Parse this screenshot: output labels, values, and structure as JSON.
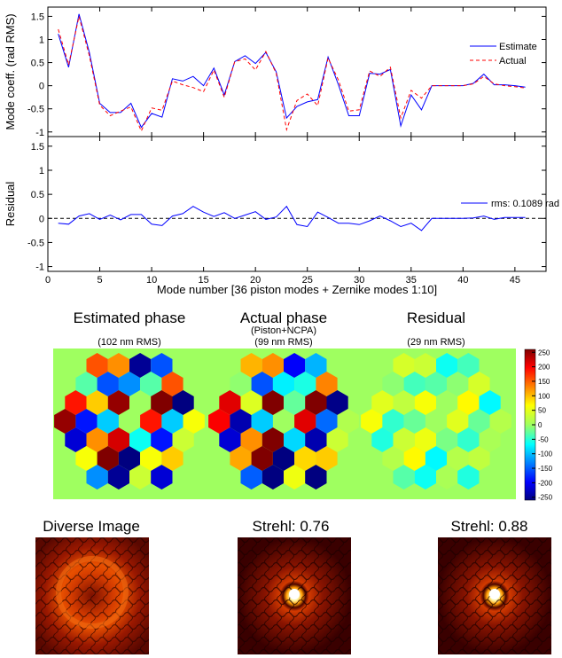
{
  "chart_data": [
    {
      "type": "line",
      "name": "mode-coefficients",
      "ylabel": "Mode coeff. (rad RMS)",
      "xlim": [
        0,
        48
      ],
      "ylim": [
        -1.1,
        1.7
      ],
      "xticks": [
        "0",
        "5",
        "10",
        "15",
        "20",
        "25",
        "30",
        "35",
        "40",
        "45"
      ],
      "yticks": [
        "-1",
        "-0.5",
        "0",
        "0.5",
        "1",
        "1.5"
      ],
      "legend": [
        "Estimate",
        "Actual"
      ],
      "x": [
        1,
        2,
        3,
        4,
        5,
        6,
        7,
        8,
        9,
        10,
        11,
        12,
        13,
        14,
        15,
        16,
        17,
        18,
        19,
        20,
        21,
        22,
        23,
        24,
        25,
        26,
        27,
        28,
        29,
        30,
        31,
        32,
        33,
        34,
        35,
        36,
        37,
        38,
        39,
        40,
        41,
        42,
        43,
        44,
        45,
        46
      ],
      "series": [
        {
          "name": "Estimate",
          "color": "#0000ff",
          "values": [
            1.12,
            0.4,
            1.55,
            0.72,
            -0.38,
            -0.58,
            -0.58,
            -0.38,
            -0.9,
            -0.6,
            -0.68,
            0.15,
            0.1,
            0.2,
            0.0,
            0.38,
            -0.2,
            0.52,
            0.65,
            0.48,
            0.72,
            0.3,
            -0.7,
            -0.45,
            -0.35,
            -0.3,
            0.62,
            0.02,
            -0.65,
            -0.65,
            0.27,
            0.25,
            0.35,
            -0.87,
            -0.2,
            -0.52,
            0.0,
            0.0,
            0.0,
            0.0,
            0.05,
            0.25,
            0.02,
            0.02,
            -0.0,
            -0.03
          ]
        },
        {
          "name": "Actual",
          "color": "#ff0000",
          "dashed": true,
          "values": [
            1.22,
            0.45,
            1.5,
            0.65,
            -0.42,
            -0.65,
            -0.55,
            -0.46,
            -0.98,
            -0.48,
            -0.53,
            0.1,
            0.02,
            -0.04,
            -0.13,
            0.34,
            -0.25,
            0.52,
            0.58,
            0.34,
            0.74,
            0.27,
            -0.95,
            -0.32,
            -0.18,
            -0.43,
            0.6,
            0.12,
            -0.55,
            -0.52,
            0.32,
            0.2,
            0.4,
            -0.7,
            -0.1,
            -0.27,
            0.0,
            0.0,
            0.0,
            0.0,
            0.04,
            0.2,
            0.04,
            0.0,
            -0.02,
            -0.05
          ]
        }
      ]
    },
    {
      "type": "line",
      "name": "residual",
      "ylabel": "Residual",
      "xlabel": "Mode number [36 piston modes + Zernike modes 1:10]",
      "xlim": [
        0,
        48
      ],
      "ylim": [
        -1.1,
        1.7
      ],
      "xticks": [
        "0",
        "5",
        "10",
        "15",
        "20",
        "25",
        "30",
        "35",
        "40",
        "45"
      ],
      "yticks": [
        "-1",
        "-0.5",
        "0",
        "0.5",
        "1",
        "1.5"
      ],
      "legend": [
        "rms: 0.1089 rad"
      ],
      "x": [
        1,
        2,
        3,
        4,
        5,
        6,
        7,
        8,
        9,
        10,
        11,
        12,
        13,
        14,
        15,
        16,
        17,
        18,
        19,
        20,
        21,
        22,
        23,
        24,
        25,
        26,
        27,
        28,
        29,
        30,
        31,
        32,
        33,
        34,
        35,
        36,
        37,
        38,
        39,
        40,
        41,
        42,
        43,
        44,
        45,
        46
      ],
      "series": [
        {
          "name": "rms: 0.1089 rad",
          "color": "#0000ff",
          "values": [
            -0.1,
            -0.12,
            0.05,
            0.1,
            -0.02,
            0.07,
            -0.03,
            0.08,
            0.08,
            -0.12,
            -0.15,
            0.05,
            0.1,
            0.25,
            0.13,
            0.04,
            0.12,
            0.0,
            0.07,
            0.14,
            -0.02,
            0.03,
            0.25,
            -0.13,
            -0.17,
            0.13,
            0.02,
            -0.1,
            -0.1,
            -0.13,
            -0.05,
            0.05,
            -0.05,
            -0.17,
            -0.1,
            -0.25,
            0.0,
            0.0,
            0.0,
            0.0,
            0.01,
            0.05,
            -0.02,
            0.02,
            0.02,
            0.02
          ]
        }
      ]
    }
  ],
  "phase_maps": {
    "titles": [
      "Estimated phase",
      "Actual phase",
      "Residual"
    ],
    "subtitle_actual": "(Piston+NCPA)",
    "rms_labels": [
      "(102 nm RMS)",
      "(99 nm RMS)",
      "(29 nm RMS)"
    ],
    "colorbar_ticks": [
      "250",
      "200",
      "150",
      "100",
      "50",
      "0",
      "-50",
      "-100",
      "-150",
      "-200",
      "-250"
    ]
  },
  "images": {
    "titles": [
      "Diverse Image",
      "Strehl: 0.76",
      "Strehl: 0.88"
    ]
  }
}
